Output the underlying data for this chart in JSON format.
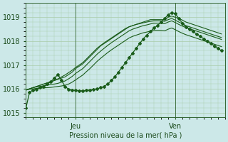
{
  "xlabel": "Pression niveau de la mer( hPa )",
  "ylim": [
    1014.8,
    1019.6
  ],
  "xlim": [
    0,
    56
  ],
  "yticks": [
    1015,
    1016,
    1017,
    1018,
    1019
  ],
  "xtick_positions": [
    14,
    42
  ],
  "xtick_labels": [
    "Jeu",
    "Ven"
  ],
  "grid_color": "#aaccaa",
  "bg_color": "#cce8e8",
  "line_color": "#1a5c1a",
  "vline_positions": [
    14,
    42
  ],
  "lines": [
    {
      "y": [
        1015.2,
        1015.85,
        1015.95,
        1015.98,
        1016.05,
        1016.1,
        1016.2,
        1016.3,
        1016.45,
        1016.6,
        1016.35,
        1016.1,
        1015.98,
        1015.95,
        1015.93,
        1015.92,
        1015.92,
        1015.93,
        1015.95,
        1015.98,
        1016.0,
        1016.05,
        1016.1,
        1016.2,
        1016.35,
        1016.5,
        1016.7,
        1016.9,
        1017.1,
        1017.3,
        1017.5,
        1017.7,
        1017.9,
        1018.1,
        1018.25,
        1018.4,
        1018.55,
        1018.65,
        1018.8,
        1018.95,
        1019.1,
        1019.2,
        1019.15,
        1018.95,
        1018.75,
        1018.6,
        1018.5,
        1018.4,
        1018.3,
        1018.2,
        1018.1,
        1018.0,
        1017.9,
        1017.8,
        1017.7,
        1017.6
      ],
      "marker": "D",
      "markersize": 2.0,
      "markevery": 1,
      "lw": 0.9
    },
    {
      "y": [
        1015.95,
        1016.0,
        1016.05,
        1016.1,
        1016.15,
        1016.2,
        1016.25,
        1016.3,
        1016.35,
        1016.4,
        1016.45,
        1016.5,
        1016.6,
        1016.7,
        1016.85,
        1016.95,
        1017.05,
        1017.2,
        1017.35,
        1017.5,
        1017.65,
        1017.8,
        1017.9,
        1018.0,
        1018.1,
        1018.2,
        1018.3,
        1018.4,
        1018.5,
        1018.6,
        1018.65,
        1018.7,
        1018.75,
        1018.8,
        1018.85,
        1018.9,
        1018.9,
        1018.9,
        1018.9,
        1018.9,
        1019.0,
        1019.05,
        1019.0,
        1018.95,
        1018.88,
        1018.8,
        1018.75,
        1018.7,
        1018.65,
        1018.6,
        1018.55,
        1018.5,
        1018.45,
        1018.4,
        1018.35,
        1018.3
      ],
      "marker": null,
      "markersize": 0,
      "markevery": 1,
      "lw": 0.8
    },
    {
      "y": [
        1015.95,
        1016.0,
        1016.05,
        1016.1,
        1016.15,
        1016.2,
        1016.25,
        1016.3,
        1016.35,
        1016.42,
        1016.5,
        1016.58,
        1016.68,
        1016.78,
        1016.9,
        1017.0,
        1017.1,
        1017.25,
        1017.4,
        1017.55,
        1017.7,
        1017.82,
        1017.93,
        1018.03,
        1018.13,
        1018.23,
        1018.33,
        1018.43,
        1018.53,
        1018.6,
        1018.65,
        1018.7,
        1018.73,
        1018.77,
        1018.8,
        1018.83,
        1018.85,
        1018.85,
        1018.85,
        1018.83,
        1018.9,
        1018.95,
        1018.88,
        1018.8,
        1018.73,
        1018.65,
        1018.6,
        1018.55,
        1018.5,
        1018.45,
        1018.4,
        1018.35,
        1018.3,
        1018.25,
        1018.2,
        1018.15
      ],
      "marker": null,
      "markersize": 0,
      "markevery": 1,
      "lw": 0.8
    },
    {
      "y": [
        1015.95,
        1016.0,
        1016.05,
        1016.08,
        1016.1,
        1016.13,
        1016.15,
        1016.18,
        1016.2,
        1016.23,
        1016.28,
        1016.33,
        1016.42,
        1016.52,
        1016.65,
        1016.75,
        1016.85,
        1017.0,
        1017.15,
        1017.3,
        1017.45,
        1017.58,
        1017.7,
        1017.82,
        1017.93,
        1018.03,
        1018.13,
        1018.23,
        1018.33,
        1018.43,
        1018.5,
        1018.55,
        1018.6,
        1018.65,
        1018.68,
        1018.72,
        1018.75,
        1018.75,
        1018.75,
        1018.73,
        1018.8,
        1018.85,
        1018.78,
        1018.7,
        1018.63,
        1018.57,
        1018.52,
        1018.47,
        1018.42,
        1018.37,
        1018.32,
        1018.27,
        1018.22,
        1018.17,
        1018.12,
        1018.07
      ],
      "marker": null,
      "markersize": 0,
      "markevery": 1,
      "lw": 0.8
    },
    {
      "y": [
        1015.95,
        1015.98,
        1016.0,
        1016.02,
        1016.03,
        1016.04,
        1016.05,
        1016.06,
        1016.08,
        1016.1,
        1016.12,
        1016.15,
        1016.2,
        1016.28,
        1016.38,
        1016.48,
        1016.58,
        1016.72,
        1016.85,
        1017.0,
        1017.15,
        1017.28,
        1017.4,
        1017.52,
        1017.63,
        1017.73,
        1017.83,
        1017.93,
        1018.03,
        1018.13,
        1018.2,
        1018.25,
        1018.3,
        1018.35,
        1018.38,
        1018.42,
        1018.45,
        1018.45,
        1018.45,
        1018.43,
        1018.5,
        1018.55,
        1018.48,
        1018.4,
        1018.33,
        1018.27,
        1018.22,
        1018.17,
        1018.12,
        1018.07,
        1018.02,
        1017.97,
        1017.92,
        1017.87,
        1017.82,
        1017.77
      ],
      "marker": null,
      "markersize": 0,
      "markevery": 1,
      "lw": 0.8
    }
  ]
}
